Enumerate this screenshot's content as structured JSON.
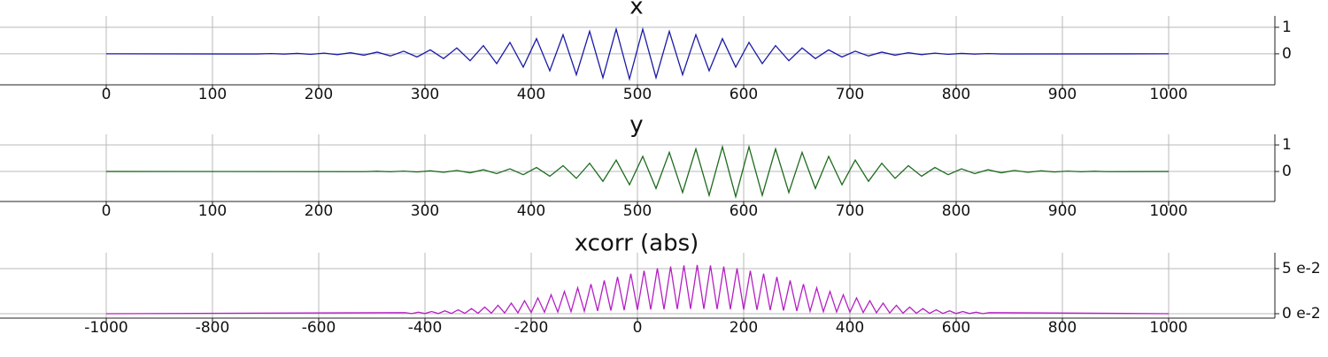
{
  "chart_data": [
    {
      "type": "line",
      "title": "x",
      "color": "#1a1aa6",
      "xlim": [
        -100,
        1100
      ],
      "ylim": [
        -1.17,
        1.43
      ],
      "xticks": [
        0,
        100,
        200,
        300,
        400,
        500,
        600,
        700,
        800,
        900,
        1000
      ],
      "yticks": [
        0,
        1
      ],
      "grid": true,
      "x": [
        0,
        142.5,
        155,
        167.5,
        180,
        192.5,
        205,
        217.5,
        230,
        242.5,
        255,
        267.5,
        280,
        292.5,
        305,
        317.5,
        330,
        342.5,
        355,
        367.5,
        380,
        392.5,
        405,
        417.5,
        430,
        442.5,
        455,
        467.5,
        480,
        492.5,
        505,
        517.5,
        530,
        542.5,
        555,
        567.5,
        580,
        592.5,
        605,
        617.5,
        630,
        642.5,
        655,
        667.5,
        680,
        692.5,
        705,
        717.5,
        730,
        742.5,
        755,
        767.5,
        780,
        792.5,
        805,
        817.5,
        830,
        842.5,
        1000
      ],
      "values": [
        0,
        -0.006,
        0.008,
        -0.01,
        0.015,
        -0.02,
        0.025,
        -0.03,
        0.04,
        -0.05,
        0.065,
        -0.08,
        0.1,
        -0.12,
        0.15,
        -0.18,
        0.22,
        -0.26,
        0.31,
        -0.37,
        0.43,
        -0.5,
        0.57,
        -0.64,
        0.72,
        -0.79,
        0.85,
        -0.9,
        0.93,
        -0.95,
        0.93,
        -0.9,
        0.85,
        -0.79,
        0.72,
        -0.64,
        0.57,
        -0.5,
        0.43,
        -0.37,
        0.31,
        -0.26,
        0.22,
        -0.18,
        0.15,
        -0.12,
        0.1,
        -0.08,
        0.065,
        -0.05,
        0.04,
        -0.03,
        0.025,
        -0.02,
        0.015,
        -0.01,
        0.008,
        -0.006,
        0
      ]
    },
    {
      "type": "line",
      "title": "y",
      "color": "#1d6b1d",
      "xlim": [
        -100,
        1100
      ],
      "ylim": [
        -1.13,
        1.4
      ],
      "xticks": [
        0,
        100,
        200,
        300,
        400,
        500,
        600,
        700,
        800,
        900,
        1000
      ],
      "yticks": [
        0,
        1
      ],
      "grid": true,
      "x": [
        0,
        242.5,
        255,
        267.5,
        280,
        292.5,
        305,
        317.5,
        330,
        342.5,
        355,
        367.5,
        380,
        392.5,
        405,
        417.5,
        430,
        442.5,
        455,
        467.5,
        480,
        492.5,
        505,
        517.5,
        530,
        542.5,
        555,
        567.5,
        580,
        592.5,
        605,
        617.5,
        630,
        642.5,
        655,
        667.5,
        680,
        692.5,
        705,
        717.5,
        730,
        742.5,
        755,
        767.5,
        780,
        792.5,
        805,
        817.5,
        830,
        842.5,
        855,
        867.5,
        880,
        892.5,
        905,
        917.5,
        930,
        942.5,
        1000
      ],
      "values": [
        0,
        -0.006,
        0.008,
        -0.01,
        0.015,
        -0.02,
        0.025,
        -0.03,
        0.04,
        -0.05,
        0.065,
        -0.08,
        0.1,
        -0.12,
        0.15,
        -0.18,
        0.22,
        -0.26,
        0.31,
        -0.37,
        0.43,
        -0.5,
        0.57,
        -0.64,
        0.72,
        -0.79,
        0.85,
        -0.9,
        0.93,
        -0.95,
        0.93,
        -0.9,
        0.85,
        -0.79,
        0.72,
        -0.64,
        0.57,
        -0.5,
        0.43,
        -0.37,
        0.31,
        -0.26,
        0.22,
        -0.18,
        0.15,
        -0.12,
        0.1,
        -0.08,
        0.065,
        -0.05,
        0.04,
        -0.03,
        0.025,
        -0.02,
        0.015,
        -0.01,
        0.008,
        -0.006,
        0
      ]
    },
    {
      "type": "line",
      "title": "xcorr (abs)",
      "color": "#b51fc4",
      "xlim": [
        -1200,
        1200
      ],
      "ylim": [
        -0.0049,
        0.0676
      ],
      "xticks": [
        -1000,
        -800,
        -600,
        -400,
        -200,
        0,
        200,
        400,
        600,
        800,
        1000
      ],
      "yticks": [
        {
          "value": 0,
          "label": "0 e-2"
        },
        {
          "value": 0.05,
          "label": "5 e-2"
        }
      ],
      "grid": true,
      "x": [
        -1000,
        -437.5,
        -425,
        -412.5,
        -400,
        -387.5,
        -375,
        -362.5,
        -350,
        -337.5,
        -325,
        -312.5,
        -300,
        -287.5,
        -275,
        -262.5,
        -250,
        -237.5,
        -225,
        -212.5,
        -200,
        -187.5,
        -175,
        -162.5,
        -150,
        -137.5,
        -125,
        -112.5,
        -100,
        -87.5,
        -75,
        -62.5,
        -50,
        -37.5,
        -25,
        -12.5,
        0,
        12.5,
        25,
        37.5,
        50,
        62.5,
        75,
        87.5,
        100,
        112.5,
        125,
        137.5,
        150,
        162.5,
        175,
        187.5,
        200,
        212.5,
        225,
        237.5,
        250,
        262.5,
        275,
        287.5,
        300,
        312.5,
        325,
        337.5,
        350,
        362.5,
        375,
        387.5,
        400,
        412.5,
        425,
        437.5,
        450,
        462.5,
        475,
        487.5,
        500,
        512.5,
        525,
        537.5,
        550,
        562.5,
        575,
        587.5,
        600,
        612.5,
        625,
        637.5,
        650,
        662.5,
        1000
      ],
      "values": [
        0,
        0.0012,
        0.0001,
        0.0017,
        0.0002,
        0.0024,
        0.0002,
        0.0032,
        0.0003,
        0.0043,
        0.0004,
        0.0057,
        0.0005,
        0.0073,
        0.0006,
        0.0093,
        0.0008,
        0.0117,
        0.001,
        0.0144,
        0.0013,
        0.0175,
        0.0016,
        0.021,
        0.0019,
        0.0247,
        0.0023,
        0.0287,
        0.0027,
        0.0328,
        0.0031,
        0.0368,
        0.0035,
        0.0408,
        0.0039,
        0.0444,
        0.0043,
        0.0477,
        0.0046,
        0.0503,
        0.0049,
        0.0523,
        0.0051,
        0.0536,
        0.0053,
        0.054,
        0.0053,
        0.0536,
        0.0051,
        0.0523,
        0.0049,
        0.0503,
        0.0046,
        0.0477,
        0.0043,
        0.0444,
        0.0039,
        0.0408,
        0.0035,
        0.0368,
        0.0031,
        0.0328,
        0.0027,
        0.0287,
        0.0023,
        0.0247,
        0.0019,
        0.021,
        0.0016,
        0.0175,
        0.0013,
        0.0144,
        0.001,
        0.0117,
        0.0008,
        0.0093,
        0.0006,
        0.0073,
        0.0005,
        0.0057,
        0.0004,
        0.0043,
        0.0003,
        0.0032,
        0.0002,
        0.0024,
        0.0002,
        0.0017,
        0.0001,
        0.0012,
        0
      ]
    }
  ]
}
